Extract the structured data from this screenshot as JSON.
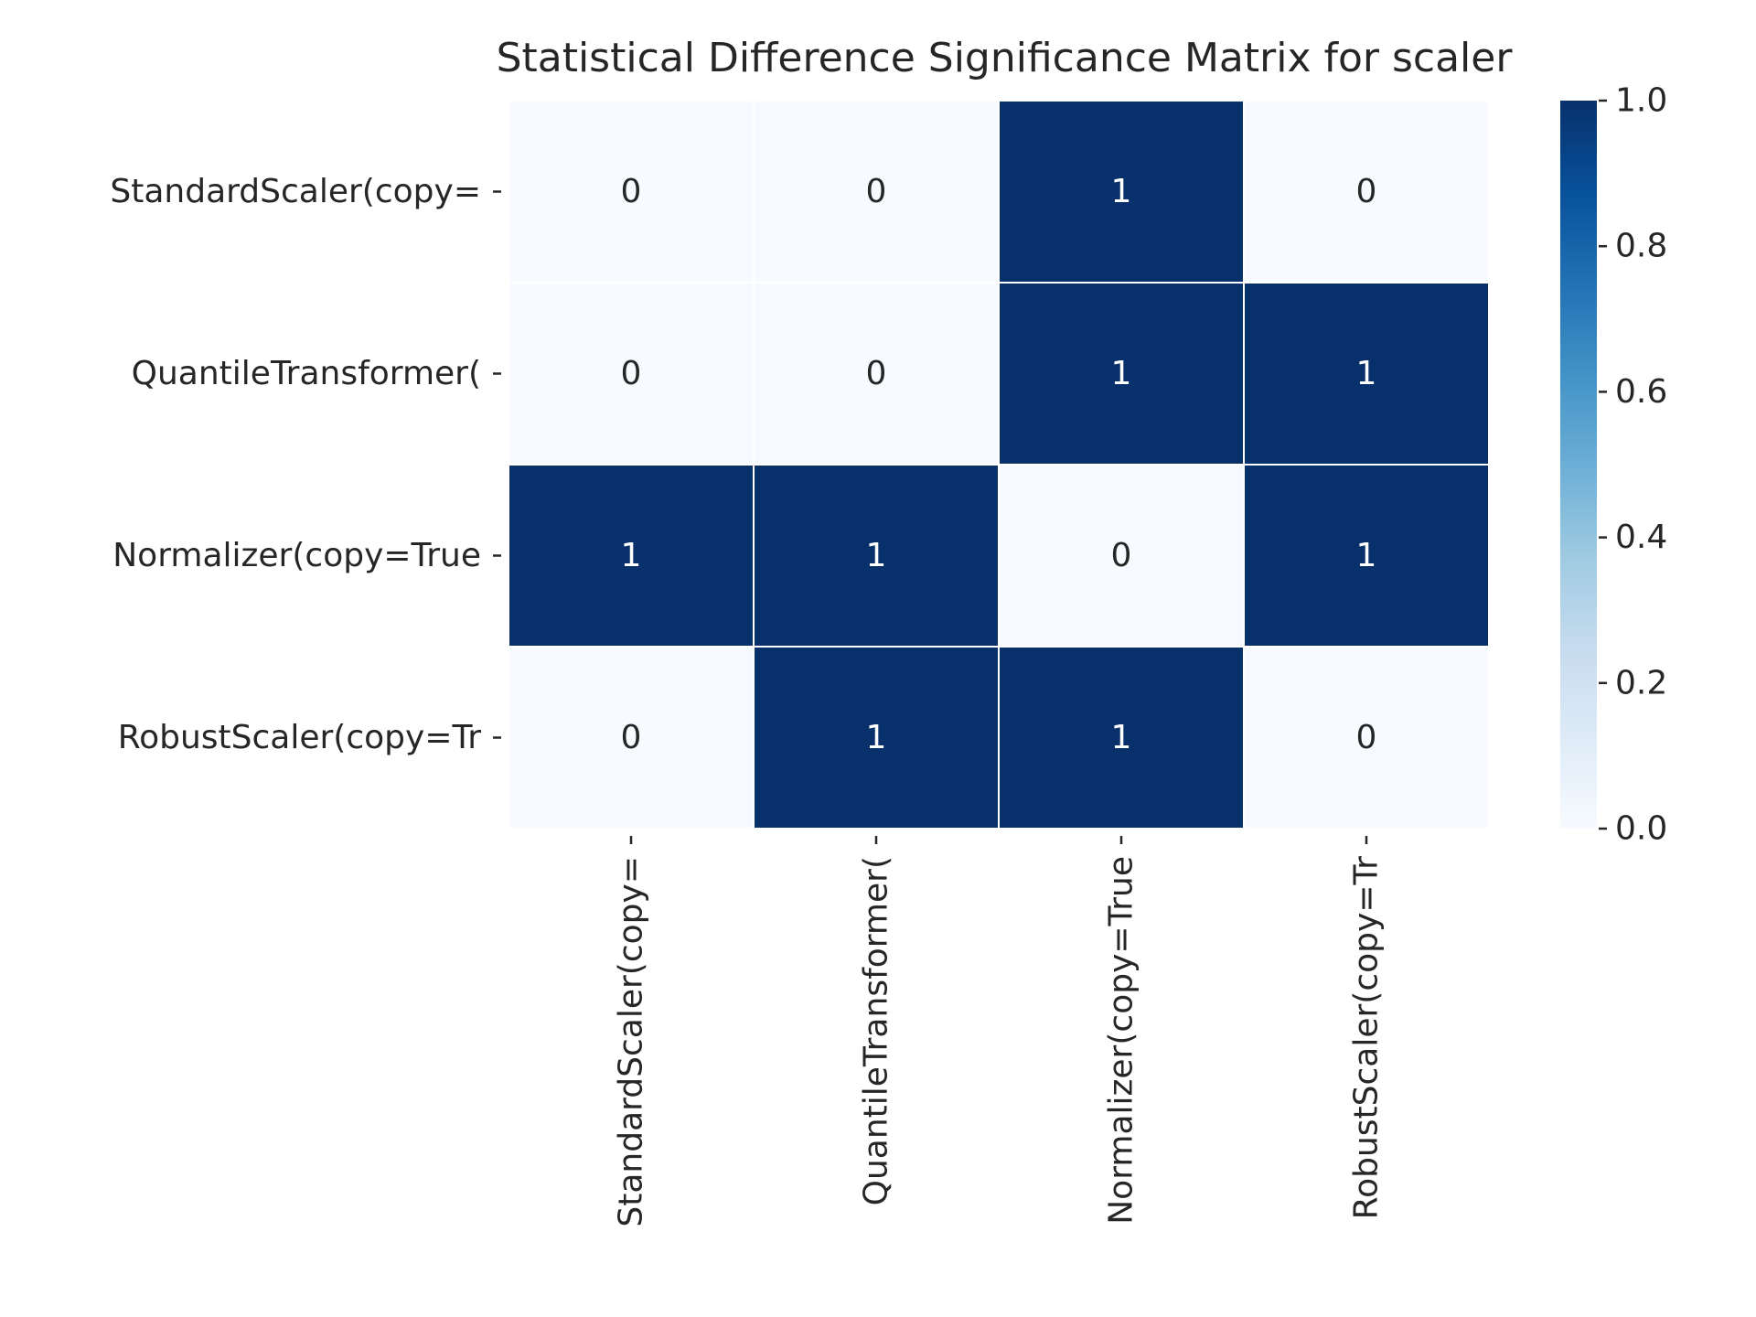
{
  "chart_data": {
    "type": "heatmap",
    "title": "Statistical Difference Significance Matrix for scaler",
    "row_labels": [
      "StandardScaler(copy=",
      "QuantileTransformer(",
      "Normalizer(copy=True",
      "RobustScaler(copy=Tr"
    ],
    "col_labels": [
      "StandardScaler(copy=",
      "QuantileTransformer(",
      "Normalizer(copy=True",
      "RobustScaler(copy=Tr"
    ],
    "values": [
      [
        0,
        0,
        1,
        0
      ],
      [
        0,
        0,
        1,
        1
      ],
      [
        1,
        1,
        0,
        1
      ],
      [
        0,
        1,
        1,
        0
      ]
    ],
    "annotations": [
      [
        "0",
        "0",
        "1",
        "0"
      ],
      [
        "0",
        "0",
        "1",
        "1"
      ],
      [
        "1",
        "1",
        "0",
        "1"
      ],
      [
        "0",
        "1",
        "1",
        "0"
      ]
    ],
    "colormap": "Blues",
    "color_low": "#f7fbff",
    "color_high": "#08306b",
    "cell_separator_color": "#ffffff",
    "colorbar": {
      "range": [
        0.0,
        1.0
      ],
      "tick_labels": [
        "0.0",
        "0.2",
        "0.4",
        "0.6",
        "0.8",
        "1.0"
      ]
    },
    "xlabel": "",
    "ylabel": ""
  }
}
